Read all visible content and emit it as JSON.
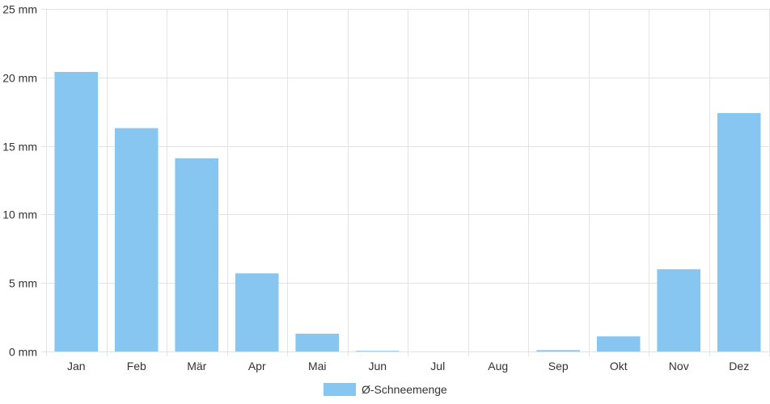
{
  "chart_data": {
    "type": "bar",
    "categories": [
      "Jan",
      "Feb",
      "Mär",
      "Apr",
      "Mai",
      "Jun",
      "Jul",
      "Aug",
      "Sep",
      "Okt",
      "Nov",
      "Dez"
    ],
    "series": [
      {
        "name": "Ø-Schneemenge",
        "values": [
          20.4,
          16.3,
          14.1,
          5.7,
          1.3,
          0.05,
          0,
          0,
          0.1,
          1.1,
          6.0,
          17.4
        ],
        "color": "#88c6f2"
      }
    ],
    "ylim": [
      0,
      25
    ],
    "yticks": [
      0,
      5,
      10,
      15,
      20,
      25
    ],
    "ytick_labels": [
      "0 mm",
      "5 mm",
      "10 mm",
      "15 mm",
      "20 mm",
      "25 mm"
    ],
    "grid": true,
    "legend_position": "bottom-center"
  }
}
